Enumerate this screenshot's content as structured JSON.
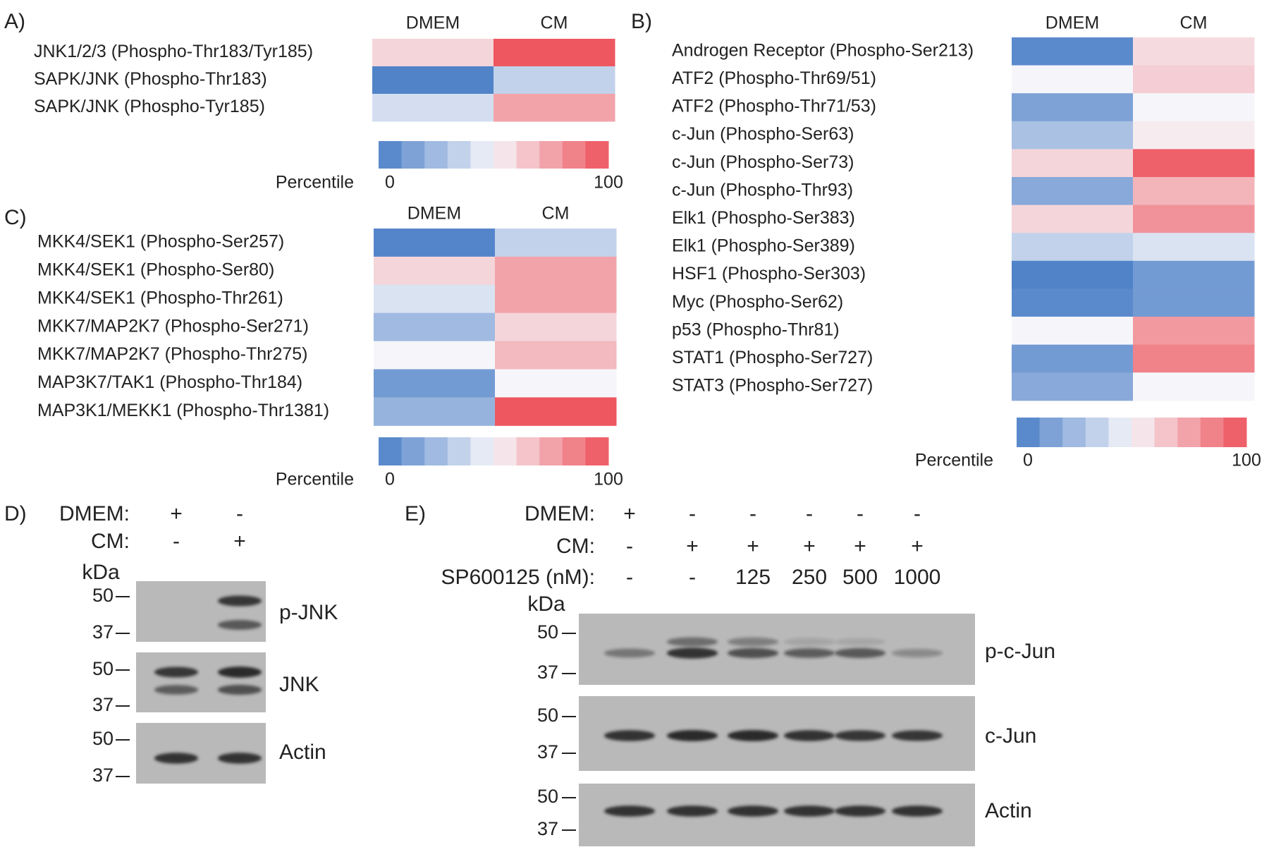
{
  "panels": {
    "A": {
      "label": "A)",
      "columns": [
        "DMEM",
        "CM"
      ],
      "rows": [
        {
          "name": "JNK1/2/3 (Phospho-Thr183/Tyr185)",
          "values": [
            60,
            98
          ]
        },
        {
          "name": "SAPK/JNK (Phospho-Thr183)",
          "values": [
            2,
            35
          ]
        },
        {
          "name": "SAPK/JNK (Phospho-Tyr185)",
          "values": [
            40,
            75
          ]
        }
      ],
      "colorbar": {
        "label": "Percentile",
        "ticks": [
          0,
          100
        ]
      }
    },
    "B": {
      "label": "B)",
      "columns": [
        "DMEM",
        "CM"
      ],
      "rows": [
        {
          "name": "Androgen Receptor (Phospho-Ser213)",
          "values": [
            5,
            58
          ]
        },
        {
          "name": "ATF2 (Phospho-Thr69/51)",
          "values": [
            50,
            62
          ]
        },
        {
          "name": "ATF2 (Phospho-Thr71/53)",
          "values": [
            15,
            50
          ]
        },
        {
          "name": "c-Jun (Phospho-Ser63)",
          "values": [
            28,
            53
          ]
        },
        {
          "name": "c-Jun (Phospho-Ser73)",
          "values": [
            60,
            95
          ]
        },
        {
          "name": "c-Jun (Phospho-Thr93)",
          "values": [
            18,
            70
          ]
        },
        {
          "name": "Elk1 (Phospho-Ser383)",
          "values": [
            60,
            80
          ]
        },
        {
          "name": "Elk1 (Phospho-Ser389)",
          "values": [
            35,
            42
          ]
        },
        {
          "name": "HSF1 (Phospho-Ser303)",
          "values": [
            2,
            12
          ]
        },
        {
          "name": "Myc (Phospho-Ser62)",
          "values": [
            5,
            12
          ]
        },
        {
          "name": "p53 (Phospho-Thr81)",
          "values": [
            50,
            78
          ]
        },
        {
          "name": "STAT1 (Phospho-Ser727)",
          "values": [
            12,
            85
          ]
        },
        {
          "name": "STAT3 (Phospho-Ser727)",
          "values": [
            18,
            50
          ]
        }
      ],
      "colorbar": {
        "label": "Percentile",
        "ticks": [
          0,
          100
        ]
      }
    },
    "C": {
      "label": "C)",
      "columns": [
        "DMEM",
        "CM"
      ],
      "rows": [
        {
          "name": "MKK4/SEK1 (Phospho-Ser257)",
          "values": [
            3,
            35
          ]
        },
        {
          "name": "MKK4/SEK1 (Phospho-Ser80)",
          "values": [
            60,
            75
          ]
        },
        {
          "name": "MKK4/SEK1 (Phospho-Thr261)",
          "values": [
            42,
            75
          ]
        },
        {
          "name": "MKK7/MAP2K7 (Phospho-Ser271)",
          "values": [
            25,
            60
          ]
        },
        {
          "name": "MKK7/MAP2K7 (Phospho-Thr275)",
          "values": [
            50,
            68
          ]
        },
        {
          "name": "MAP3K7/TAK1 (Phospho-Thr184)",
          "values": [
            12,
            50
          ]
        },
        {
          "name": "MAP3K1/MEKK1 (Phospho-Thr1381)",
          "values": [
            22,
            98
          ]
        }
      ],
      "colorbar": {
        "label": "Percentile",
        "ticks": [
          0,
          100
        ]
      }
    },
    "D": {
      "label": "D)",
      "conditions": [
        {
          "name": "DMEM:",
          "lanes": [
            "+",
            "-"
          ]
        },
        {
          "name": "CM:",
          "lanes": [
            "-",
            "+"
          ]
        }
      ],
      "kda_label": "kDa",
      "blots": [
        {
          "name": "p-JNK",
          "markers": [
            50,
            37
          ]
        },
        {
          "name": "JNK",
          "markers": [
            50,
            37
          ]
        },
        {
          "name": "Actin",
          "markers": [
            50,
            37
          ]
        }
      ]
    },
    "E": {
      "label": "E)",
      "conditions": [
        {
          "name": "DMEM:",
          "lanes": [
            "+",
            "-",
            "-",
            "-",
            "-",
            "-"
          ]
        },
        {
          "name": "CM:",
          "lanes": [
            "-",
            "+",
            "+",
            "+",
            "+",
            "+"
          ]
        },
        {
          "name": "SP600125 (nM):",
          "lanes": [
            "-",
            "-",
            125,
            250,
            500,
            1000
          ]
        }
      ],
      "kda_label": "kDa",
      "blots": [
        {
          "name": "p-c-Jun",
          "markers": [
            50,
            37
          ]
        },
        {
          "name": "c-Jun",
          "markers": [
            50,
            37
          ]
        },
        {
          "name": "Actin",
          "markers": [
            50,
            37
          ]
        }
      ]
    }
  }
}
